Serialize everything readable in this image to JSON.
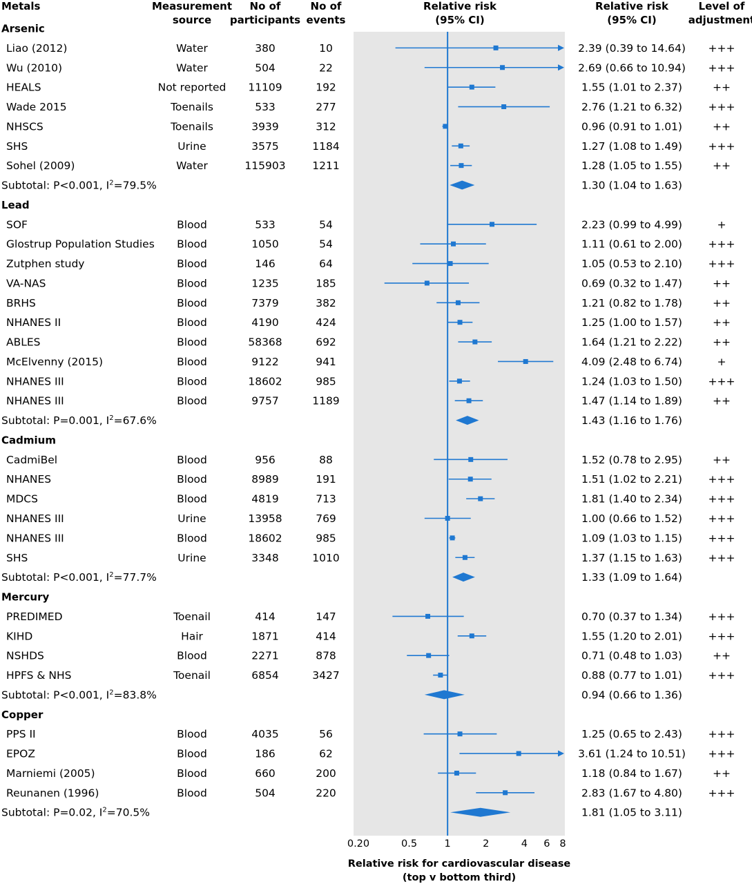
{
  "headers": {
    "metals": "Metals",
    "source": [
      "Measurement",
      "source"
    ],
    "participants": [
      "No of",
      "participants"
    ],
    "events": [
      "No of",
      "events"
    ],
    "plot": [
      "Relative risk",
      "(95% CI)"
    ],
    "rr": [
      "Relative risk",
      "(95% CI)"
    ],
    "adjustment": [
      "Level of",
      "adjustment"
    ]
  },
  "x_axis": {
    "label": [
      "Relative risk for cardiovascular disease",
      "(top v bottom third)"
    ]
  },
  "chart_data": {
    "type": "forest",
    "x_scale": "log",
    "xlim": [
      0.2,
      8
    ],
    "reference_line": 1,
    "ticks": [
      {
        "value": 0.2,
        "label": "0.20"
      },
      {
        "value": 0.5,
        "label": "0.5"
      },
      {
        "value": 1,
        "label": "1"
      },
      {
        "value": 2,
        "label": "2"
      },
      {
        "value": 4,
        "label": "4"
      },
      {
        "value": 6,
        "label": "6"
      },
      {
        "value": 8,
        "label": "8"
      }
    ],
    "colors": {
      "marker": "#1f78d1",
      "panel": "#e6e6e6",
      "reference": "#1f78d1"
    },
    "groups": [
      {
        "name": "Arsenic",
        "studies": [
          {
            "study": "Liao (2012)",
            "source": "Water",
            "participants": "380",
            "events": "10",
            "rr": 2.39,
            "lo": 0.39,
            "hi": 14.64,
            "rr_text": "2.39 (0.39 to 14.64)",
            "adjustment": "+++"
          },
          {
            "study": "Wu (2010)",
            "source": "Water",
            "participants": "504",
            "events": "22",
            "rr": 2.69,
            "lo": 0.66,
            "hi": 10.94,
            "rr_text": "2.69 (0.66 to 10.94)",
            "adjustment": "+++"
          },
          {
            "study": "HEALS",
            "source": "Not reported",
            "participants": "11109",
            "events": "192",
            "rr": 1.55,
            "lo": 1.01,
            "hi": 2.37,
            "rr_text": "1.55 (1.01 to 2.37)",
            "adjustment": "++"
          },
          {
            "study": "Wade 2015",
            "source": "Toenails",
            "participants": "533",
            "events": "277",
            "rr": 2.76,
            "lo": 1.21,
            "hi": 6.32,
            "rr_text": "2.76 (1.21 to 6.32)",
            "adjustment": "+++"
          },
          {
            "study": "NHSCS",
            "source": "Toenails",
            "participants": "3939",
            "events": "312",
            "rr": 0.96,
            "lo": 0.91,
            "hi": 1.01,
            "rr_text": "0.96 (0.91 to 1.01)",
            "adjustment": "++"
          },
          {
            "study": "SHS",
            "source": "Urine",
            "participants": "3575",
            "events": "1184",
            "rr": 1.27,
            "lo": 1.08,
            "hi": 1.49,
            "rr_text": "1.27 (1.08 to 1.49)",
            "adjustment": "+++"
          },
          {
            "study": "Sohel (2009)",
            "source": "Water",
            "participants": "115903",
            "events": "1211",
            "rr": 1.28,
            "lo": 1.05,
            "hi": 1.55,
            "rr_text": "1.28 (1.05 to 1.55)",
            "adjustment": "++"
          }
        ],
        "subtotal": {
          "label_prefix": "Subtotal: P<0.001, I",
          "label_sup": "2",
          "label_suffix": "=79.5%",
          "rr": 1.3,
          "lo": 1.04,
          "hi": 1.63,
          "rr_text": "1.30 (1.04 to 1.63)"
        }
      },
      {
        "name": "Lead",
        "studies": [
          {
            "study": "SOF",
            "source": "Blood",
            "participants": "533",
            "events": "54",
            "rr": 2.23,
            "lo": 0.99,
            "hi": 4.99,
            "rr_text": "2.23 (0.99 to  4.99)",
            "adjustment": "+"
          },
          {
            "study": "Glostrup Population Studies",
            "source": "Blood",
            "participants": "1050",
            "events": "54",
            "rr": 1.11,
            "lo": 0.61,
            "hi": 2.0,
            "rr_text": "1.11 (0.61 to 2.00)",
            "adjustment": "+++"
          },
          {
            "study": "Zutphen study",
            "source": "Blood",
            "participants": "146",
            "events": "64",
            "rr": 1.05,
            "lo": 0.53,
            "hi": 2.1,
            "rr_text": "1.05 (0.53 to 2.10)",
            "adjustment": "+++"
          },
          {
            "study": "VA-NAS",
            "source": "Blood",
            "participants": "1235",
            "events": "185",
            "rr": 0.69,
            "lo": 0.32,
            "hi": 1.47,
            "rr_text": "0.69 (0.32 to 1.47)",
            "adjustment": "++"
          },
          {
            "study": "BRHS",
            "source": "Blood",
            "participants": "7379",
            "events": "382",
            "rr": 1.21,
            "lo": 0.82,
            "hi": 1.78,
            "rr_text": "1.21 (0.82 to 1.78)",
            "adjustment": "++"
          },
          {
            "study": "NHANES II",
            "source": "Blood",
            "participants": "4190",
            "events": "424",
            "rr": 1.25,
            "lo": 1.0,
            "hi": 1.57,
            "rr_text": "1.25 (1.00 to 1.57)",
            "adjustment": "++"
          },
          {
            "study": "ABLES",
            "source": "Blood",
            "participants": "58368",
            "events": "692",
            "rr": 1.64,
            "lo": 1.21,
            "hi": 2.22,
            "rr_text": "1.64 (1.21 to 2.22)",
            "adjustment": "++"
          },
          {
            "study": "McElvenny (2015)",
            "source": "Blood",
            "participants": "9122",
            "events": "941",
            "rr": 4.09,
            "lo": 2.48,
            "hi": 6.74,
            "rr_text": "4.09 (2.48 to 6.74)",
            "adjustment": "+"
          },
          {
            "study": "NHANES III",
            "source": "Blood",
            "participants": "18602",
            "events": "985",
            "rr": 1.24,
            "lo": 1.03,
            "hi": 1.5,
            "rr_text": "1.24 (1.03 to 1.50)",
            "adjustment": "+++"
          },
          {
            "study": "NHANES III",
            "source": "Blood",
            "participants": "9757",
            "events": "1189",
            "rr": 1.47,
            "lo": 1.14,
            "hi": 1.89,
            "rr_text": "1.47 (1.14 to 1.89)",
            "adjustment": "++"
          }
        ],
        "subtotal": {
          "label_prefix": "Subtotal: P=0.001, I",
          "label_sup": "2",
          "label_suffix": "=67.6%",
          "rr": 1.43,
          "lo": 1.16,
          "hi": 1.76,
          "rr_text": "1.43 (1.16 to 1.76)"
        }
      },
      {
        "name": "Cadmium",
        "studies": [
          {
            "study": "CadmiBel",
            "source": "Blood",
            "participants": "956",
            "events": "88",
            "rr": 1.52,
            "lo": 0.78,
            "hi": 2.95,
            "rr_text": "1.52 (0.78 to 2.95)",
            "adjustment": "++"
          },
          {
            "study": "NHANES",
            "source": "Blood",
            "participants": "8989",
            "events": "191",
            "rr": 1.51,
            "lo": 1.02,
            "hi": 2.21,
            "rr_text": "1.51 (1.02 to 2.21)",
            "adjustment": "+++"
          },
          {
            "study": "MDCS",
            "source": "Blood",
            "participants": "4819",
            "events": "713",
            "rr": 1.81,
            "lo": 1.4,
            "hi": 2.34,
            "rr_text": "1.81 (1.40 to 2.34)",
            "adjustment": "+++"
          },
          {
            "study": "NHANES III",
            "source": "Urine",
            "participants": "13958",
            "events": "769",
            "rr": 1.0,
            "lo": 0.66,
            "hi": 1.52,
            "rr_text": "1.00 (0.66 to 1.52)",
            "adjustment": "+++"
          },
          {
            "study": "NHANES III",
            "source": "Blood",
            "participants": "18602",
            "events": "985",
            "rr": 1.09,
            "lo": 1.03,
            "hi": 1.15,
            "rr_text": "1.09 (1.03 to 1.15)",
            "adjustment": "+++"
          },
          {
            "study": "SHS",
            "source": "Urine",
            "participants": "3348",
            "events": "1010",
            "rr": 1.37,
            "lo": 1.15,
            "hi": 1.63,
            "rr_text": "1.37 (1.15 to 1.63)",
            "adjustment": "+++"
          }
        ],
        "subtotal": {
          "label_prefix": "Subtotal: P<0.001, I",
          "label_sup": "2",
          "label_suffix": "=77.7%",
          "rr": 1.33,
          "lo": 1.09,
          "hi": 1.64,
          "rr_text": "1.33 (1.09 to 1.64)"
        }
      },
      {
        "name": "Mercury",
        "studies": [
          {
            "study": "PREDIMED",
            "source": "Toenail",
            "participants": "414",
            "events": "147",
            "rr": 0.7,
            "lo": 0.37,
            "hi": 1.34,
            "rr_text": "0.70 (0.37 to 1.34)",
            "adjustment": "+++"
          },
          {
            "study": "KIHD",
            "source": "Hair",
            "participants": "1871",
            "events": "414",
            "rr": 1.55,
            "lo": 1.2,
            "hi": 2.01,
            "rr_text": "1.55 (1.20 to 2.01)",
            "adjustment": "+++"
          },
          {
            "study": "NSHDS",
            "source": "Blood",
            "participants": "2271",
            "events": "878",
            "rr": 0.71,
            "lo": 0.48,
            "hi": 1.03,
            "rr_text": "0.71 (0.48 to 1.03)",
            "adjustment": "++"
          },
          {
            "study": "HPFS & NHS",
            "source": "Toenail",
            "participants": "6854",
            "events": "3427",
            "rr": 0.88,
            "lo": 0.77,
            "hi": 1.01,
            "rr_text": "0.88 (0.77 to 1.01)",
            "adjustment": "+++"
          }
        ],
        "subtotal": {
          "label_prefix": "Subtotal: P<0.001, I",
          "label_sup": "2",
          "label_suffix": "=83.8%",
          "rr": 0.94,
          "lo": 0.66,
          "hi": 1.36,
          "rr_text": "0.94 (0.66 to 1.36)"
        }
      },
      {
        "name": "Copper",
        "studies": [
          {
            "study": "PPS II",
            "source": "Blood",
            "participants": "4035",
            "events": "56",
            "rr": 1.25,
            "lo": 0.65,
            "hi": 2.43,
            "rr_text": "1.25 (0.65 to 2.43)",
            "adjustment": "+++"
          },
          {
            "study": "EPOZ",
            "source": "Blood",
            "participants": "186",
            "events": "62",
            "rr": 3.61,
            "lo": 1.24,
            "hi": 10.51,
            "rr_text": "3.61 (1.24 to 10.51)",
            "adjustment": "+++"
          },
          {
            "study": "Marniemi (2005)",
            "source": "Blood",
            "participants": "660",
            "events": "200",
            "rr": 1.18,
            "lo": 0.84,
            "hi": 1.67,
            "rr_text": "1.18 (0.84 to 1.67)",
            "adjustment": "++"
          },
          {
            "study": "Reunanen (1996)",
            "source": "Blood",
            "participants": "504",
            "events": "220",
            "rr": 2.83,
            "lo": 1.67,
            "hi": 4.8,
            "rr_text": "2.83 (1.67 to 4.80)",
            "adjustment": "+++"
          }
        ],
        "subtotal": {
          "label_prefix": "Subtotal: P=0.02, I",
          "label_sup": "2",
          "label_suffix": "=70.5%",
          "rr": 1.81,
          "lo": 1.05,
          "hi": 3.11,
          "rr_text": "1.81 (1.05 to 3.11)"
        }
      }
    ]
  }
}
